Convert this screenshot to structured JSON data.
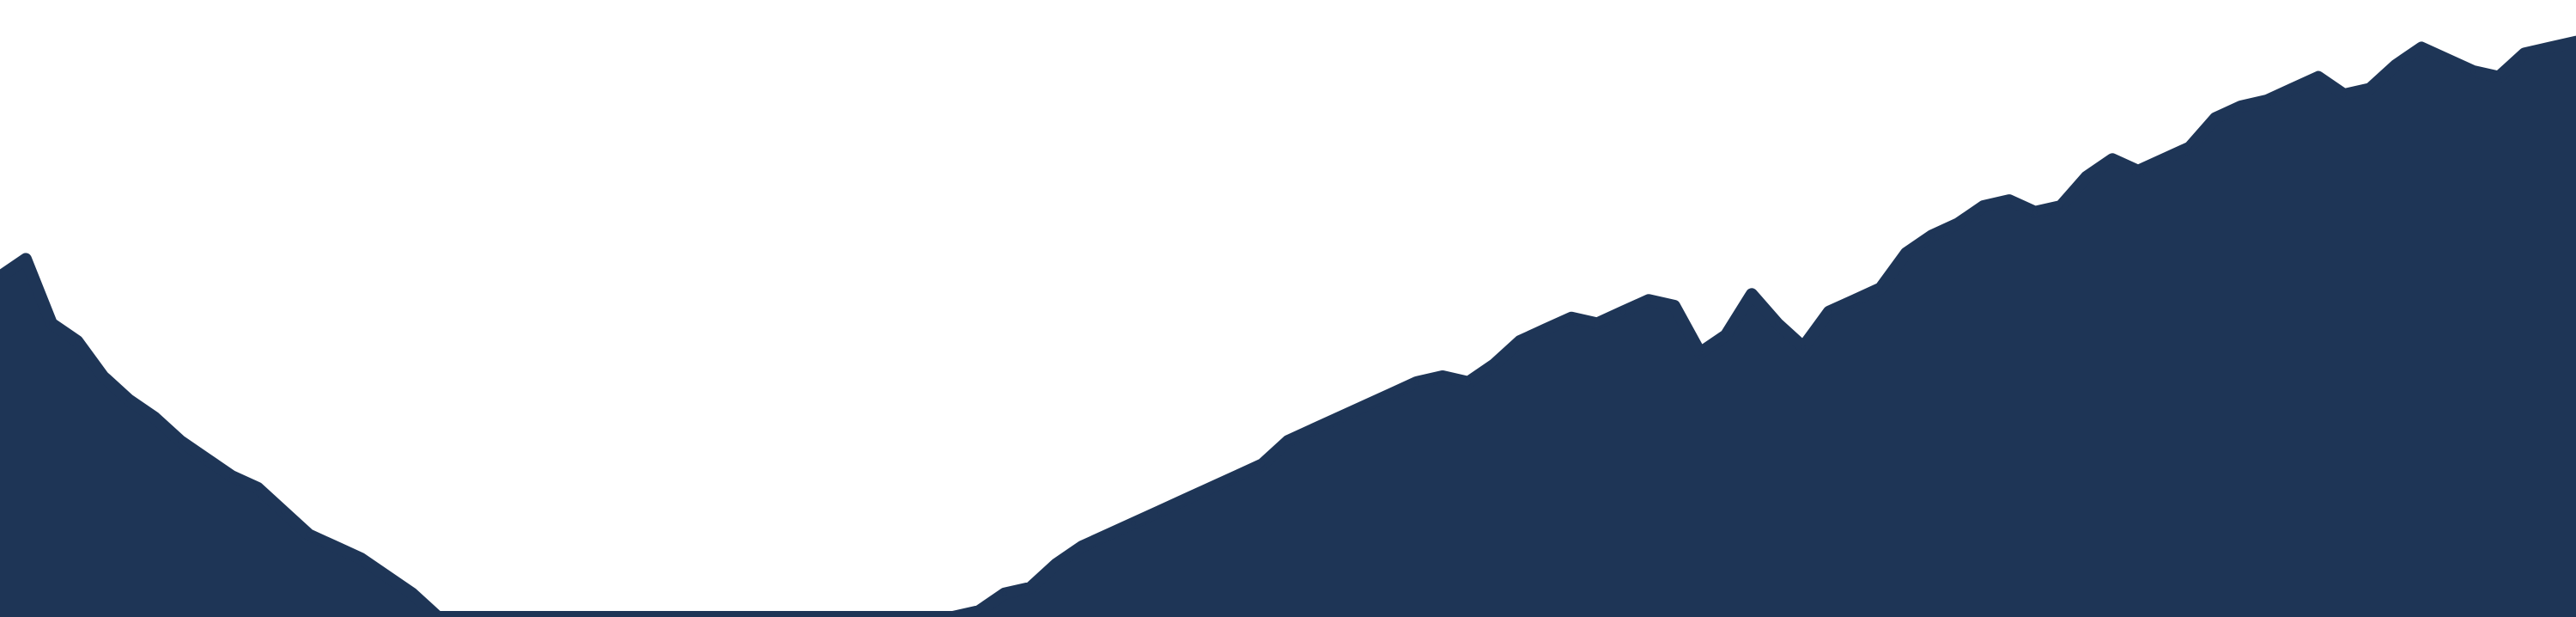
{
  "colors": {
    "background": "#ffffff",
    "fill": "#1e3556"
  },
  "chart_data": {
    "type": "area",
    "title": "",
    "xlabel": "",
    "ylabel": "",
    "axes_visible": false,
    "grid": false,
    "legend": "none",
    "x": [
      0,
      1,
      2,
      3,
      4,
      5,
      6,
      7,
      8,
      9,
      10,
      11,
      12,
      13,
      14,
      15,
      16,
      17,
      18,
      19,
      20,
      21,
      22,
      23,
      24,
      25,
      26,
      27,
      28,
      29,
      30,
      31,
      32,
      33,
      34,
      35,
      36,
      37,
      38,
      39,
      40,
      41,
      42,
      43,
      44,
      45,
      46,
      47,
      48,
      49,
      50,
      51,
      52,
      53,
      54,
      55,
      56,
      57,
      58,
      59,
      60,
      61,
      62,
      63,
      64,
      65,
      66,
      67,
      68,
      69,
      70,
      71,
      72,
      73,
      74,
      75,
      76,
      77,
      78,
      79,
      80,
      81,
      82,
      83,
      84,
      85,
      86,
      87,
      88,
      89,
      90,
      91,
      92,
      93,
      94,
      95,
      96,
      97,
      98,
      99,
      100
    ],
    "xlim": [
      0,
      100
    ],
    "ylim": [
      0,
      100
    ],
    "series": [
      {
        "values": [
          58,
          61,
          50,
          47,
          41,
          37,
          34,
          30,
          27,
          24,
          22,
          18,
          14,
          12,
          10,
          7,
          4,
          0,
          0,
          0,
          0,
          0,
          0,
          0,
          0,
          0,
          0,
          0,
          0,
          0,
          0,
          0,
          0,
          0,
          0,
          0,
          0,
          0,
          1,
          4,
          5,
          9,
          12,
          14,
          16,
          18,
          20,
          22,
          24,
          26,
          30,
          32,
          34,
          36,
          38,
          40,
          41,
          40,
          43,
          47,
          49,
          51,
          50,
          52,
          54,
          53,
          45,
          48,
          55,
          50,
          46,
          52,
          54,
          56,
          62,
          65,
          67,
          70,
          71,
          69,
          70,
          75,
          78,
          76,
          78,
          80,
          85,
          87,
          88,
          90,
          92,
          89,
          90,
          94,
          97,
          95,
          93,
          92,
          96,
          97,
          98
        ]
      }
    ]
  }
}
